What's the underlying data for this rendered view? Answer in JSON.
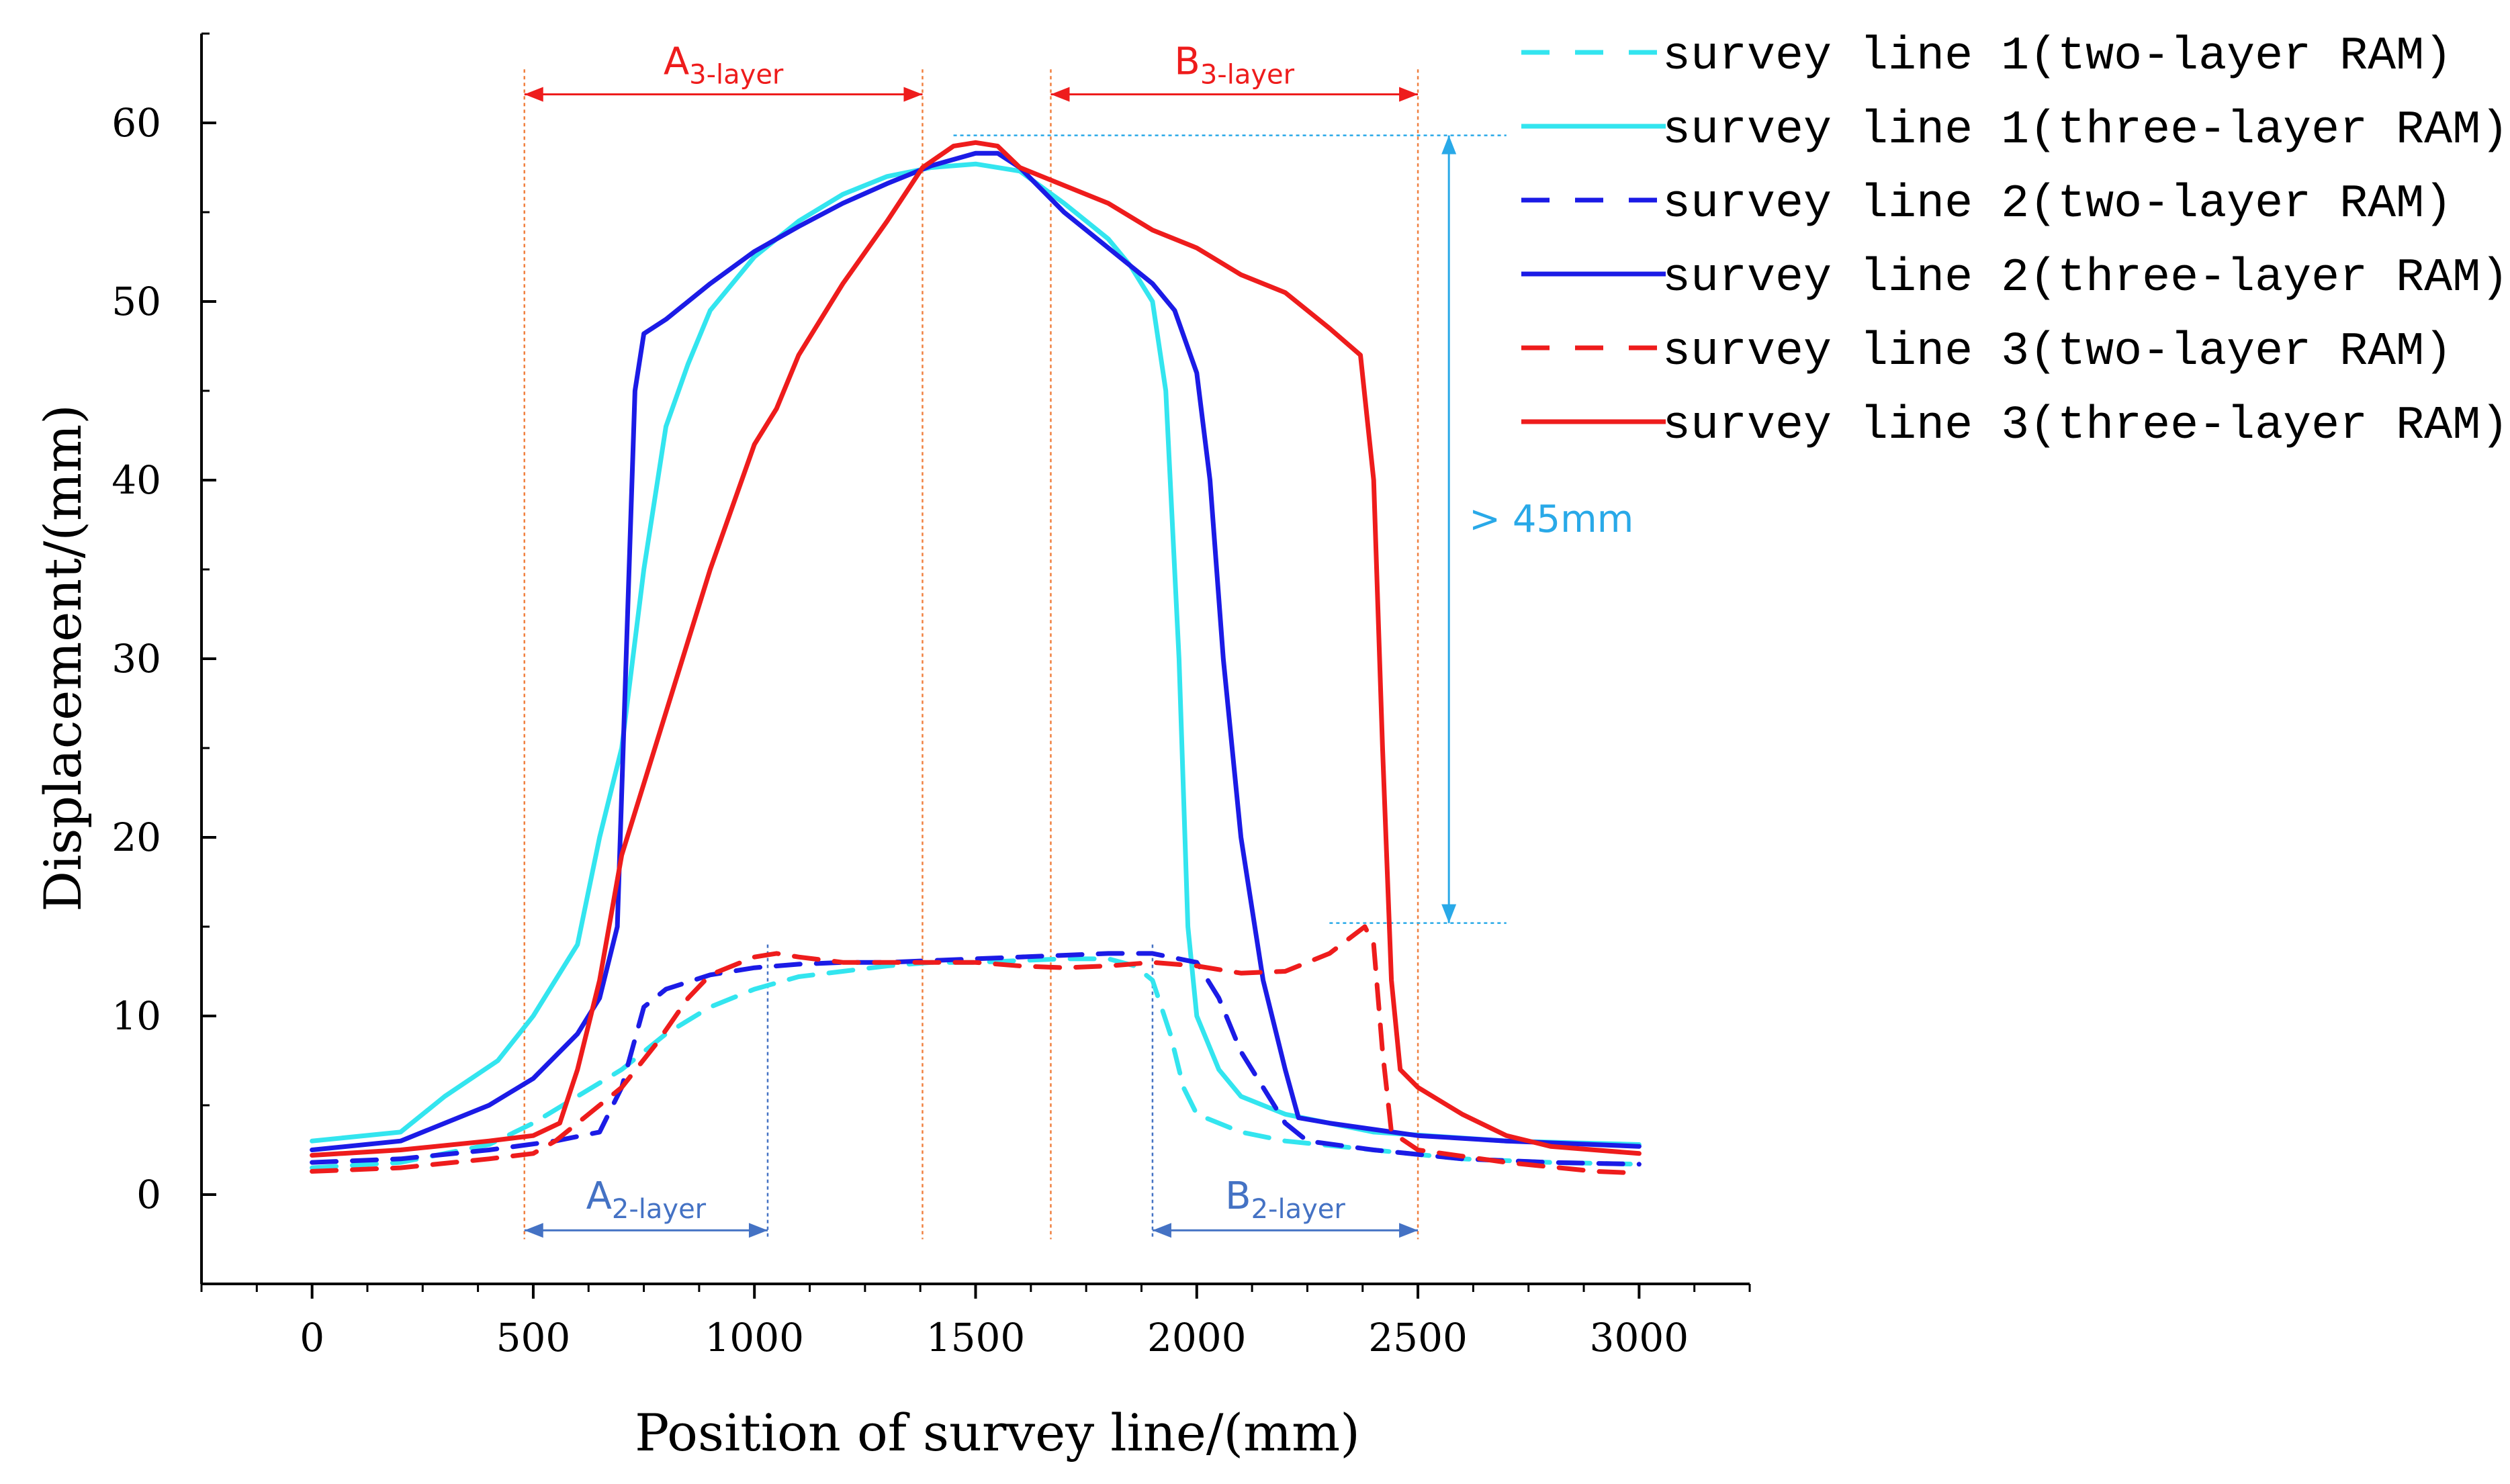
{
  "chart_data": {
    "type": "line",
    "title": "",
    "xlabel": "Position of survey line/(mm)",
    "ylabel": "Displacement/(mm)",
    "xlim": [
      -250,
      3250
    ],
    "ylim": [
      -5,
      65
    ],
    "xticks": [
      0,
      500,
      1000,
      1500,
      2000,
      2500,
      3000
    ],
    "yticks": [
      0,
      10,
      20,
      30,
      40,
      50,
      60
    ],
    "xtick_labels": [
      "0",
      "500",
      "1000",
      "1500",
      "2000",
      "2500",
      "3000"
    ],
    "ytick_labels": [
      "0",
      "10",
      "20",
      "30",
      "40",
      "50",
      "60"
    ],
    "grid": false,
    "legend_position": "top-right",
    "series": [
      {
        "name": "survey line 1(two-layer RAM)",
        "color": "#33E5EF",
        "style": "dashed",
        "points": [
          [
            0,
            1.5
          ],
          [
            200,
            1.8
          ],
          [
            400,
            2.8
          ],
          [
            500,
            4
          ],
          [
            600,
            5.5
          ],
          [
            700,
            7
          ],
          [
            800,
            9
          ],
          [
            900,
            10.5
          ],
          [
            1000,
            11.5
          ],
          [
            1100,
            12.2
          ],
          [
            1200,
            12.5
          ],
          [
            1300,
            12.8
          ],
          [
            1400,
            13
          ],
          [
            1500,
            13
          ],
          [
            1600,
            13.1
          ],
          [
            1700,
            13.2
          ],
          [
            1800,
            13.2
          ],
          [
            1860,
            12.8
          ],
          [
            1900,
            12
          ],
          [
            1940,
            9
          ],
          [
            1970,
            6
          ],
          [
            2000,
            4.5
          ],
          [
            2100,
            3.5
          ],
          [
            2200,
            3
          ],
          [
            2400,
            2.5
          ],
          [
            2600,
            2
          ],
          [
            2800,
            1.8
          ],
          [
            3000,
            1.7
          ]
        ]
      },
      {
        "name": "survey line 1(three-layer RAM)",
        "color": "#33E5EF",
        "style": "solid",
        "points": [
          [
            0,
            3
          ],
          [
            200,
            3.5
          ],
          [
            300,
            5.5
          ],
          [
            420,
            7.5
          ],
          [
            500,
            10
          ],
          [
            600,
            14
          ],
          [
            650,
            20
          ],
          [
            700,
            25
          ],
          [
            750,
            35
          ],
          [
            800,
            43
          ],
          [
            850,
            46.5
          ],
          [
            900,
            49.5
          ],
          [
            1000,
            52.5
          ],
          [
            1100,
            54.5
          ],
          [
            1200,
            56
          ],
          [
            1300,
            57
          ],
          [
            1400,
            57.5
          ],
          [
            1500,
            57.7
          ],
          [
            1600,
            57.3
          ],
          [
            1700,
            55.5
          ],
          [
            1800,
            53.5
          ],
          [
            1850,
            52
          ],
          [
            1900,
            50
          ],
          [
            1930,
            45
          ],
          [
            1960,
            30
          ],
          [
            1980,
            15
          ],
          [
            2000,
            10
          ],
          [
            2050,
            7
          ],
          [
            2100,
            5.5
          ],
          [
            2200,
            4.5
          ],
          [
            2400,
            3.5
          ],
          [
            2700,
            3
          ],
          [
            3000,
            2.8
          ]
        ]
      },
      {
        "name": "survey line 2(two-layer RAM)",
        "color": "#1B1BE6",
        "style": "dashed",
        "points": [
          [
            0,
            1.8
          ],
          [
            200,
            2
          ],
          [
            400,
            2.5
          ],
          [
            550,
            3
          ],
          [
            650,
            3.5
          ],
          [
            700,
            6
          ],
          [
            750,
            10.5
          ],
          [
            800,
            11.5
          ],
          [
            900,
            12.3
          ],
          [
            1000,
            12.7
          ],
          [
            1100,
            12.9
          ],
          [
            1200,
            13
          ],
          [
            1300,
            13
          ],
          [
            1400,
            13.1
          ],
          [
            1500,
            13.2
          ],
          [
            1600,
            13.3
          ],
          [
            1700,
            13.4
          ],
          [
            1800,
            13.5
          ],
          [
            1900,
            13.5
          ],
          [
            1960,
            13.2
          ],
          [
            2000,
            13
          ],
          [
            2050,
            11
          ],
          [
            2100,
            8
          ],
          [
            2150,
            6
          ],
          [
            2200,
            4
          ],
          [
            2250,
            3
          ],
          [
            2400,
            2.5
          ],
          [
            2600,
            2
          ],
          [
            2800,
            1.8
          ],
          [
            3000,
            1.7
          ]
        ]
      },
      {
        "name": "survey line 2(three-layer RAM)",
        "color": "#1B1BE6",
        "style": "solid",
        "points": [
          [
            0,
            2.5
          ],
          [
            200,
            3
          ],
          [
            300,
            4
          ],
          [
            400,
            5
          ],
          [
            500,
            6.5
          ],
          [
            600,
            9
          ],
          [
            650,
            11
          ],
          [
            690,
            15
          ],
          [
            710,
            30
          ],
          [
            730,
            45
          ],
          [
            750,
            48.2
          ],
          [
            800,
            49
          ],
          [
            900,
            51
          ],
          [
            1000,
            52.8
          ],
          [
            1100,
            54.2
          ],
          [
            1200,
            55.5
          ],
          [
            1300,
            56.6
          ],
          [
            1400,
            57.6
          ],
          [
            1500,
            58.3
          ],
          [
            1550,
            58.3
          ],
          [
            1600,
            57.5
          ],
          [
            1700,
            55
          ],
          [
            1800,
            53
          ],
          [
            1900,
            51
          ],
          [
            1950,
            49.5
          ],
          [
            2000,
            46
          ],
          [
            2030,
            40
          ],
          [
            2060,
            30
          ],
          [
            2100,
            20
          ],
          [
            2150,
            12
          ],
          [
            2200,
            7
          ],
          [
            2230,
            4.3
          ],
          [
            2300,
            4
          ],
          [
            2500,
            3.3
          ],
          [
            2700,
            3
          ],
          [
            3000,
            2.7
          ]
        ]
      },
      {
        "name": "survey line 3(two-layer RAM)",
        "color": "#EE1C1C",
        "style": "dashed",
        "points": [
          [
            0,
            1.3
          ],
          [
            200,
            1.5
          ],
          [
            400,
            2
          ],
          [
            500,
            2.3
          ],
          [
            550,
            3
          ],
          [
            600,
            4
          ],
          [
            700,
            6
          ],
          [
            780,
            8.5
          ],
          [
            850,
            11
          ],
          [
            900,
            12.3
          ],
          [
            1000,
            13.3
          ],
          [
            1050,
            13.5
          ],
          [
            1100,
            13.3
          ],
          [
            1200,
            13
          ],
          [
            1300,
            13
          ],
          [
            1400,
            13
          ],
          [
            1500,
            13
          ],
          [
            1600,
            12.8
          ],
          [
            1700,
            12.7
          ],
          [
            1800,
            12.8
          ],
          [
            1900,
            13
          ],
          [
            2000,
            12.8
          ],
          [
            2100,
            12.4
          ],
          [
            2200,
            12.5
          ],
          [
            2300,
            13.5
          ],
          [
            2380,
            15
          ],
          [
            2400,
            14
          ],
          [
            2420,
            8
          ],
          [
            2440,
            3.5
          ],
          [
            2500,
            2.5
          ],
          [
            2700,
            1.8
          ],
          [
            2900,
            1.3
          ],
          [
            3000,
            1.2
          ]
        ]
      },
      {
        "name": "survey line 3(three-layer RAM)",
        "color": "#EE1C1C",
        "style": "solid",
        "points": [
          [
            0,
            2.2
          ],
          [
            200,
            2.5
          ],
          [
            400,
            3
          ],
          [
            500,
            3.3
          ],
          [
            560,
            4
          ],
          [
            600,
            7
          ],
          [
            650,
            12
          ],
          [
            700,
            19
          ],
          [
            800,
            27
          ],
          [
            900,
            35
          ],
          [
            1000,
            42
          ],
          [
            1050,
            44
          ],
          [
            1100,
            47
          ],
          [
            1200,
            51
          ],
          [
            1300,
            54.5
          ],
          [
            1380,
            57.5
          ],
          [
            1450,
            58.7
          ],
          [
            1500,
            58.9
          ],
          [
            1550,
            58.7
          ],
          [
            1600,
            57.5
          ],
          [
            1700,
            56.5
          ],
          [
            1800,
            55.5
          ],
          [
            1900,
            54
          ],
          [
            2000,
            53
          ],
          [
            2100,
            51.5
          ],
          [
            2200,
            50.5
          ],
          [
            2300,
            48.5
          ],
          [
            2370,
            47
          ],
          [
            2400,
            40
          ],
          [
            2420,
            25
          ],
          [
            2440,
            12
          ],
          [
            2460,
            7
          ],
          [
            2500,
            6
          ],
          [
            2600,
            4.5
          ],
          [
            2700,
            3.3
          ],
          [
            2800,
            2.7
          ],
          [
            3000,
            2.3
          ]
        ]
      }
    ],
    "annotations": {
      "a3": {
        "main": "A",
        "sub": "3-layer",
        "from": 480,
        "to": 1380
      },
      "b3": {
        "main": "B",
        "sub": "3-layer",
        "from": 1670,
        "to": 2500
      },
      "a2": {
        "main": "A",
        "sub": "2-layer",
        "from": 480,
        "to": 1030
      },
      "b2": {
        "main": "B",
        "sub": "2-layer",
        "from": 1900,
        "to": 2500
      },
      "gap": {
        "text": "> 45mm",
        "y_top": 59.3,
        "y_bottom": 15.2,
        "x": 2570
      }
    },
    "anno_colors": {
      "red": "#EE1C1C",
      "blue": "#4472C4",
      "cyan": "#29A9E8",
      "guide": "#F08040"
    }
  }
}
